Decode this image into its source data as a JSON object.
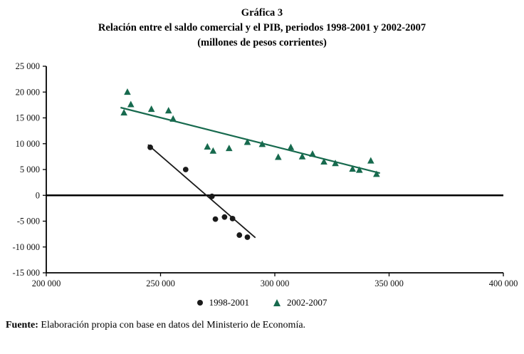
{
  "title": {
    "line1": "Gráfica 3",
    "line2": "Relación entre el saldo comercial y el PIB, periodos 1998-2001 y 2002-2007",
    "line3": "(millones de pesos corrientes)"
  },
  "legend": [
    {
      "label": "1998-2001",
      "marker": "circle",
      "color": "#1a1a1a"
    },
    {
      "label": "2002-2007",
      "marker": "triangle",
      "color": "#176a4e"
    }
  ],
  "source": {
    "label": "Fuente:",
    "text": " Elaboración propia con base en datos del Ministerio de Economía."
  },
  "chart_data": {
    "type": "scatter",
    "title": "Gráfica 3 — Relación entre el saldo comercial y el PIB, periodos 1998-2001 y 2002-2007 (millones de pesos corrientes)",
    "xlabel": "",
    "ylabel": "",
    "xlim": [
      200000,
      400000
    ],
    "ylim": [
      -15000,
      25000
    ],
    "grid": false,
    "legend_position": "bottom",
    "zero_line": true,
    "axis_color": "#000000",
    "xticks": [
      {
        "value": 200000,
        "label": "200 000"
      },
      {
        "value": 250000,
        "label": "250 000"
      },
      {
        "value": 300000,
        "label": "300 000"
      },
      {
        "value": 350000,
        "label": "350 000"
      },
      {
        "value": 400000,
        "label": "400 000"
      }
    ],
    "yticks": [
      {
        "value": 25000,
        "label": "25 000"
      },
      {
        "value": 20000,
        "label": "20 000"
      },
      {
        "value": 15000,
        "label": "15 000"
      },
      {
        "value": 10000,
        "label": "10 000"
      },
      {
        "value": 5000,
        "label": "5 000"
      },
      {
        "value": 0,
        "label": "0"
      },
      {
        "value": -5000,
        "label": "-5 000"
      },
      {
        "value": -10000,
        "label": "-10 000"
      },
      {
        "value": -15000,
        "label": "-15 000"
      }
    ],
    "series": [
      {
        "name": "1998-2001",
        "marker": "circle",
        "color": "#1a1a1a",
        "points": [
          [
            245500,
            9300
          ],
          [
            261000,
            5000
          ],
          [
            272500,
            -200
          ],
          [
            274000,
            -4600
          ],
          [
            278000,
            -4200
          ],
          [
            281500,
            -4500
          ],
          [
            284500,
            -7700
          ],
          [
            288000,
            -8100
          ]
        ],
        "trend": [
          [
            244500,
            9800
          ],
          [
            291500,
            -8200
          ]
        ],
        "trend_width": 1.8
      },
      {
        "name": "2002-2007",
        "marker": "triangle",
        "color": "#176a4e",
        "points": [
          [
            234000,
            16000
          ],
          [
            235500,
            20000
          ],
          [
            237000,
            17600
          ],
          [
            246000,
            16700
          ],
          [
            253500,
            16400
          ],
          [
            255500,
            14800
          ],
          [
            270500,
            9400
          ],
          [
            273000,
            8600
          ],
          [
            280000,
            9100
          ],
          [
            288000,
            10300
          ],
          [
            294500,
            9900
          ],
          [
            301500,
            7400
          ],
          [
            307000,
            9300
          ],
          [
            312000,
            7500
          ],
          [
            316500,
            8000
          ],
          [
            321500,
            6500
          ],
          [
            326500,
            6200
          ],
          [
            334000,
            5100
          ],
          [
            337000,
            4900
          ],
          [
            342000,
            6700
          ],
          [
            344500,
            4100
          ]
        ],
        "trend": [
          [
            232500,
            17000
          ],
          [
            346000,
            4300
          ]
        ],
        "trend_width": 2.2
      }
    ]
  }
}
